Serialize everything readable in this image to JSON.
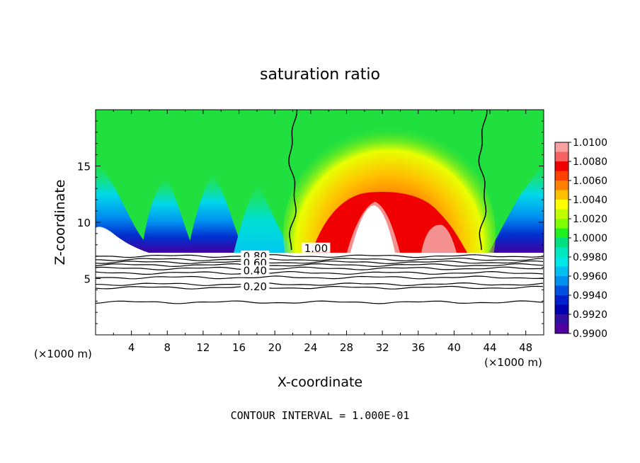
{
  "chart_data": {
    "type": "heatmap",
    "title": "saturation ratio",
    "xlabel": "X-coordinate",
    "ylabel": "Z-coordinate",
    "x_unit": "(×1000 m)",
    "x_unit_right": "(×1000 m)",
    "footer": "CONTOUR INTERVAL = 1.000E-01",
    "xlim": [
      0,
      50
    ],
    "ylim": [
      0,
      20
    ],
    "x_ticks": [
      4,
      8,
      12,
      16,
      20,
      24,
      28,
      32,
      36,
      40,
      44,
      48
    ],
    "y_ticks": [
      5,
      10,
      15
    ],
    "colorbar": {
      "levels": [
        "1.0100",
        "1.0080",
        "1.0060",
        "1.0040",
        "1.0020",
        "1.0000",
        "0.9980",
        "0.9960",
        "0.9940",
        "0.9920",
        "0.9900"
      ],
      "colors": [
        "#f9a0a0",
        "#f46262",
        "#f00000",
        "#ff4000",
        "#ff8000",
        "#ffc000",
        "#ffff00",
        "#c0ff00",
        "#80ff00",
        "#20f020",
        "#00e080",
        "#00e8c0",
        "#00e8e8",
        "#00c0f0",
        "#0090f0",
        "#0050e0",
        "#0020d0",
        "#0000b0",
        "#3010a0",
        "#5000a0"
      ]
    },
    "contour_labels": [
      {
        "text": "1.00",
        "x": 24.6,
        "z": 7.5
      },
      {
        "text": "0.80",
        "x": 17.8,
        "z": 6.8
      },
      {
        "text": "0.60",
        "x": 17.8,
        "z": 6.2
      },
      {
        "text": "0.40",
        "x": 17.8,
        "z": 5.5
      },
      {
        "text": "0.20",
        "x": 17.8,
        "z": 4.1
      }
    ],
    "contour_lines_z": [
      7.0,
      6.7,
      6.45,
      6.2,
      5.9,
      5.5,
      5.1,
      4.5,
      4.2,
      2.9
    ],
    "saturation_boundaries_x": [
      22,
      43.2
    ]
  }
}
